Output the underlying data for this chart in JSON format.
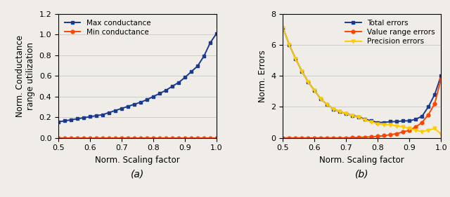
{
  "plot_a": {
    "x": [
      0.5,
      0.52,
      0.54,
      0.56,
      0.58,
      0.6,
      0.62,
      0.64,
      0.66,
      0.68,
      0.7,
      0.72,
      0.74,
      0.76,
      0.78,
      0.8,
      0.82,
      0.84,
      0.86,
      0.88,
      0.9,
      0.92,
      0.94,
      0.96,
      0.98,
      1.0
    ],
    "max_cond": [
      0.155,
      0.165,
      0.175,
      0.185,
      0.195,
      0.205,
      0.215,
      0.225,
      0.245,
      0.265,
      0.285,
      0.305,
      0.325,
      0.345,
      0.37,
      0.4,
      0.43,
      0.46,
      0.5,
      0.535,
      0.585,
      0.64,
      0.695,
      0.79,
      0.92,
      1.01
    ],
    "min_cond": [
      0.0,
      0.0,
      0.0,
      0.0,
      0.0,
      0.0,
      0.0,
      0.0,
      0.0,
      0.0,
      0.0,
      0.0,
      0.0,
      0.0,
      0.0,
      0.0,
      0.0,
      0.0,
      0.0,
      0.0,
      0.0,
      0.0,
      0.0,
      0.0,
      0.0,
      0.0
    ],
    "ylabel": "Norm. Conductance\nrange utilization",
    "xlabel": "Norm. Scaling factor",
    "ylim": [
      0,
      1.2
    ],
    "yticks": [
      0,
      0.2,
      0.4,
      0.6,
      0.8,
      1.0,
      1.2
    ],
    "xlim": [
      0.5,
      1.0
    ],
    "xticks": [
      0.5,
      0.6,
      0.7,
      0.8,
      0.9,
      1.0
    ],
    "legend_max": "Max conductance",
    "legend_min": "Min conductance",
    "color_max": "#1a3a8c",
    "color_min": "#ff4400"
  },
  "plot_b": {
    "x": [
      0.5,
      0.52,
      0.54,
      0.56,
      0.58,
      0.6,
      0.62,
      0.64,
      0.66,
      0.68,
      0.7,
      0.72,
      0.74,
      0.76,
      0.78,
      0.8,
      0.82,
      0.84,
      0.86,
      0.88,
      0.9,
      0.92,
      0.94,
      0.96,
      0.98,
      1.0
    ],
    "total_errors": [
      7.1,
      6.0,
      5.1,
      4.3,
      3.6,
      3.05,
      2.5,
      2.15,
      1.85,
      1.7,
      1.55,
      1.45,
      1.35,
      1.2,
      1.1,
      1.0,
      1.0,
      1.05,
      1.05,
      1.1,
      1.1,
      1.2,
      1.4,
      2.0,
      2.8,
      4.0
    ],
    "value_range_errors": [
      0.0,
      0.0,
      0.0,
      0.0,
      0.0,
      0.0,
      0.0,
      0.0,
      0.0,
      0.0,
      0.0,
      0.02,
      0.03,
      0.05,
      0.07,
      0.1,
      0.15,
      0.2,
      0.28,
      0.38,
      0.5,
      0.7,
      1.0,
      1.5,
      2.2,
      3.8
    ],
    "precision_errors": [
      7.1,
      6.0,
      5.1,
      4.3,
      3.6,
      3.05,
      2.5,
      2.15,
      1.85,
      1.7,
      1.55,
      1.43,
      1.32,
      1.15,
      1.03,
      0.9,
      0.85,
      0.85,
      0.77,
      0.72,
      0.6,
      0.5,
      0.4,
      0.5,
      0.6,
      0.25
    ],
    "ylabel": "Norm. Errors",
    "xlabel": "Norm. Scaling factor",
    "ylim": [
      0,
      8
    ],
    "yticks": [
      0,
      2,
      4,
      6,
      8
    ],
    "xlim": [
      0.5,
      1.0
    ],
    "xticks": [
      0.5,
      0.6,
      0.7,
      0.8,
      0.9,
      1.0
    ],
    "legend_total": "Total errors",
    "legend_value": "Value range errors",
    "legend_prec": "Precision errors",
    "color_total": "#1a3a8c",
    "color_value": "#ff4400",
    "color_prec": "#ffcc00"
  },
  "figure": {
    "caption_a": "(a)",
    "caption_b": "(b)",
    "bg_color": "#f0ede8",
    "grid_color": "#cccccc"
  }
}
